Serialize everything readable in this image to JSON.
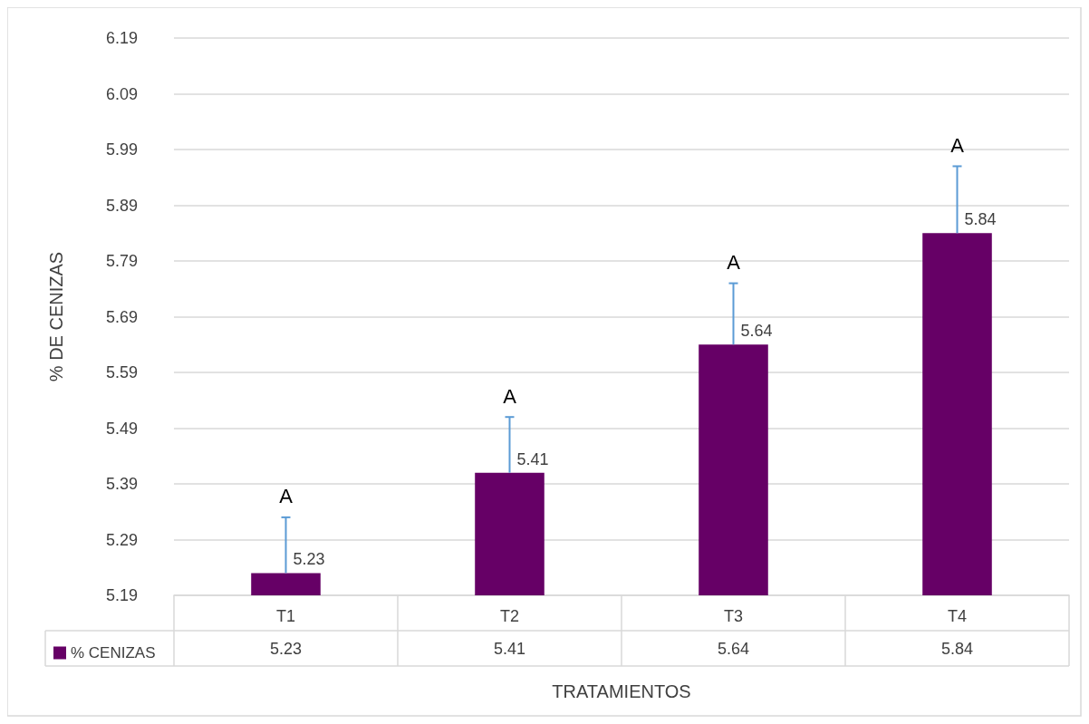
{
  "chart_data": {
    "type": "bar",
    "categories": [
      "T1",
      "T2",
      "T3",
      "T4"
    ],
    "series": [
      {
        "name": "% CENIZAS",
        "color": "#660066",
        "values": [
          5.23,
          5.41,
          5.64,
          5.84
        ],
        "value_labels": [
          "5.23",
          "5.41",
          "5.64",
          "5.84"
        ],
        "errors": [
          [
            5.23,
            5.33
          ],
          [
            5.41,
            5.51
          ],
          [
            5.64,
            5.75
          ],
          [
            5.84,
            5.96
          ]
        ]
      }
    ],
    "xlabel": "TRATAMIENTOS",
    "ylabel": "% DE CENIZAS",
    "ylim": [
      5.19,
      6.19
    ],
    "yticks": [
      5.19,
      5.29,
      5.39,
      5.49,
      5.59,
      5.69,
      5.79,
      5.89,
      5.99,
      6.09,
      6.19
    ],
    "grid": "y",
    "legend": "bottom",
    "annotations": [
      "A",
      "A",
      "A",
      "A",
      {
        "text": "5.23",
        "x": "T1",
        "y": 5.23
      },
      {
        "text": "5.41",
        "x": "T2",
        "y": 5.41
      },
      {
        "text": "5.64",
        "x": "T3",
        "y": 5.64
      },
      {
        "text": "5.84",
        "x": "T4",
        "y": 5.84
      }
    ]
  }
}
